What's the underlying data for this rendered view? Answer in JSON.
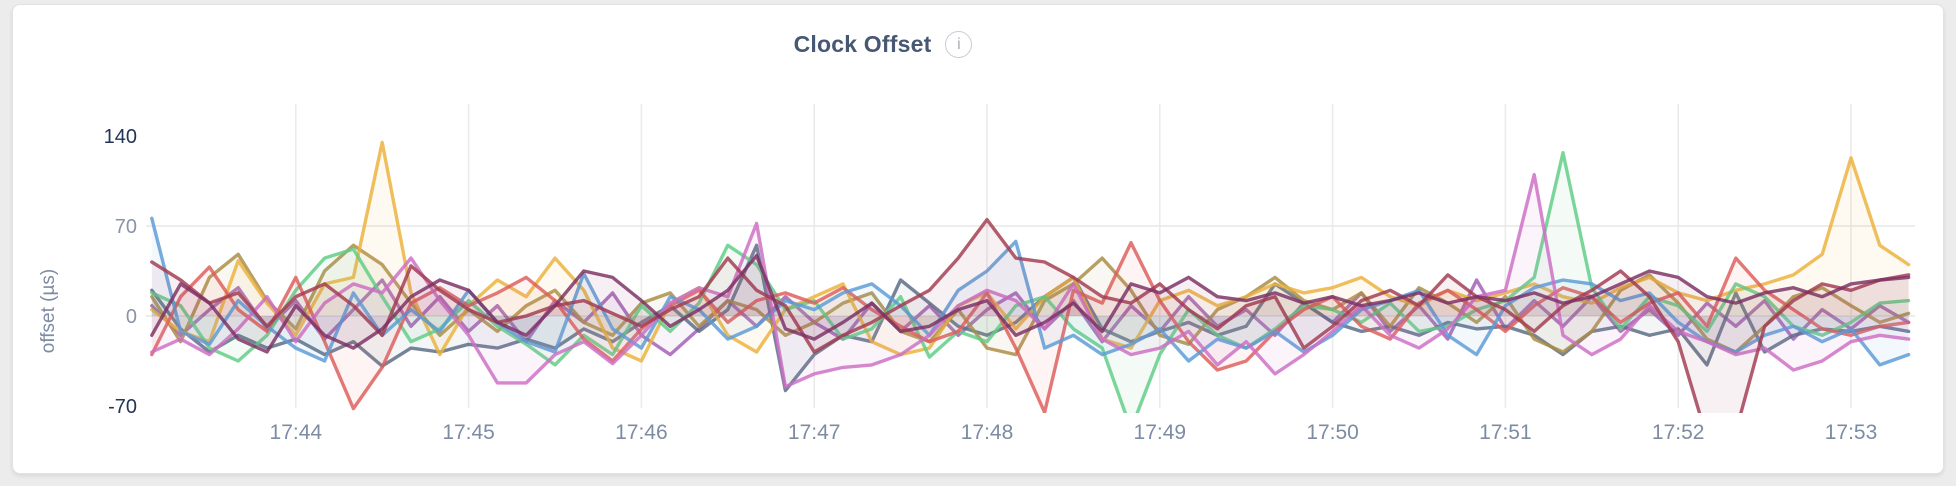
{
  "card": {
    "title": "Clock Offset"
  },
  "icons": {
    "info": "i"
  },
  "chart_data": {
    "type": "line",
    "title": "Clock Offset",
    "xlabel": "",
    "ylabel": "offset (µs)",
    "ylim": [
      -70,
      140
    ],
    "yticks": [
      140,
      70,
      0,
      -70
    ],
    "x_ticks": [
      "17:44",
      "17:45",
      "17:46",
      "17:47",
      "17:48",
      "17:49",
      "17:50",
      "17:51",
      "17:52",
      "17:53"
    ],
    "x_start": "17:43:10",
    "x_step_seconds": 10,
    "grid": true,
    "legend": "none",
    "series": [
      {
        "name": "violet",
        "color": "#A15FB5",
        "values": [
          8,
          -15,
          5,
          22,
          -10,
          12,
          -18,
          5,
          28,
          -8,
          15,
          -12,
          8,
          -20,
          12,
          -5,
          18,
          -15,
          -30,
          -10,
          12,
          -8,
          15,
          -5,
          -18,
          10,
          -12,
          8,
          -15,
          5,
          18,
          -10,
          12,
          -20,
          8,
          -12,
          15,
          -8,
          5,
          -15,
          10,
          -5,
          18,
          -12,
          8,
          -18,
          28,
          -10,
          12,
          -8,
          15,
          -12,
          5,
          -15,
          10,
          -8,
          12,
          -18,
          5,
          -10,
          8,
          -5
        ]
      },
      {
        "name": "slate",
        "color": "#5A6B84",
        "values": [
          20,
          -10,
          -28,
          -15,
          -25,
          -18,
          -30,
          -20,
          -39,
          -25,
          -28,
          -22,
          -25,
          -18,
          -25,
          -10,
          -20,
          -5,
          8,
          -12,
          5,
          55,
          -58,
          -30,
          -15,
          -20,
          28,
          10,
          -8,
          -15,
          -5,
          15,
          30,
          -10,
          -20,
          -12,
          -5,
          -15,
          -8,
          25,
          10,
          -5,
          -12,
          -8,
          -15,
          -5,
          -10,
          -8,
          -15,
          -30,
          -12,
          -8,
          -15,
          -10,
          -38,
          18,
          -28,
          -15,
          -10,
          -12,
          -8,
          -12
        ]
      },
      {
        "name": "olive",
        "color": "#A98D44",
        "values": [
          15,
          -20,
          30,
          48,
          12,
          -10,
          35,
          55,
          40,
          10,
          -15,
          5,
          -12,
          8,
          20,
          -5,
          -15,
          10,
          18,
          -8,
          12,
          5,
          -15,
          -5,
          10,
          18,
          -12,
          -20,
          5,
          -25,
          -30,
          12,
          25,
          45,
          20,
          -15,
          -22,
          5,
          15,
          30,
          12,
          5,
          18,
          -8,
          22,
          10,
          -5,
          15,
          -18,
          -28,
          -12,
          20,
          32,
          10,
          -18,
          -28,
          -8,
          15,
          22,
          8,
          -5,
          2
        ]
      },
      {
        "name": "gold",
        "color": "#ECB23C",
        "values": [
          5,
          -12,
          -20,
          43,
          10,
          -15,
          25,
          30,
          135,
          18,
          -30,
          8,
          28,
          15,
          45,
          20,
          -25,
          -35,
          10,
          22,
          -15,
          -28,
          5,
          15,
          25,
          -20,
          -30,
          -25,
          8,
          18,
          -10,
          15,
          30,
          -18,
          -25,
          12,
          20,
          8,
          15,
          25,
          18,
          22,
          30,
          15,
          8,
          20,
          12,
          18,
          25,
          15,
          10,
          22,
          30,
          18,
          12,
          20,
          25,
          32,
          48,
          123,
          55,
          40
        ]
      },
      {
        "name": "green",
        "color": "#60CC85",
        "values": [
          18,
          8,
          -25,
          -35,
          -15,
          20,
          45,
          52,
          15,
          -20,
          -10,
          12,
          -8,
          -22,
          -38,
          -15,
          -30,
          8,
          -12,
          10,
          55,
          40,
          5,
          12,
          -18,
          -10,
          15,
          -32,
          -12,
          -20,
          8,
          15,
          -10,
          -25,
          -88,
          -30,
          5,
          -15,
          -25,
          -10,
          8,
          5,
          -5,
          10,
          -12,
          -8,
          5,
          12,
          30,
          127,
          22,
          -10,
          15,
          8,
          -12,
          25,
          15,
          -8,
          -15,
          -5,
          10,
          12
        ]
      },
      {
        "name": "salmon",
        "color": "#DD5E5B",
        "values": [
          -30,
          15,
          38,
          5,
          -12,
          30,
          -20,
          -72,
          -40,
          10,
          22,
          8,
          18,
          30,
          12,
          -18,
          -35,
          -10,
          8,
          20,
          -5,
          12,
          18,
          10,
          22,
          5,
          -8,
          -20,
          -12,
          18,
          -25,
          -75,
          20,
          10,
          57,
          12,
          -20,
          -42,
          -35,
          -12,
          5,
          15,
          -8,
          -18,
          10,
          20,
          5,
          -12,
          8,
          22,
          15,
          -5,
          10,
          18,
          -8,
          45,
          20,
          5,
          -10,
          -15,
          -8,
          -5
        ]
      },
      {
        "name": "blue",
        "color": "#5C9BD6",
        "values": [
          76,
          -12,
          -22,
          12,
          -8,
          -25,
          -35,
          18,
          -15,
          5,
          -12,
          20,
          -5,
          -20,
          -28,
          33,
          -10,
          -25,
          15,
          5,
          -18,
          -8,
          12,
          5,
          18,
          25,
          8,
          -15,
          20,
          35,
          58,
          -25,
          -15,
          -30,
          -22,
          -10,
          -35,
          -18,
          -25,
          -12,
          -28,
          -15,
          5,
          12,
          20,
          -15,
          -30,
          8,
          22,
          28,
          25,
          12,
          18,
          -5,
          -20,
          -28,
          -15,
          -8,
          -20,
          -10,
          -38,
          -30
        ]
      },
      {
        "name": "orchid",
        "color": "#CC6FC4",
        "values": [
          -28,
          -18,
          -30,
          -10,
          15,
          -20,
          10,
          25,
          18,
          45,
          12,
          -15,
          -52,
          -52,
          -30,
          -20,
          -37,
          -15,
          10,
          22,
          15,
          72,
          -55,
          -45,
          -40,
          -38,
          -30,
          -15,
          8,
          20,
          12,
          -10,
          25,
          -18,
          -30,
          -25,
          -12,
          -38,
          -20,
          -45,
          -30,
          -12,
          8,
          -15,
          -25,
          -10,
          15,
          20,
          110,
          -15,
          -30,
          -18,
          8,
          -12,
          -20,
          -30,
          -25,
          -42,
          -35,
          -20,
          -15,
          -18
        ]
      },
      {
        "name": "maroon",
        "color": "#A23C52",
        "values": [
          42,
          28,
          10,
          18,
          -8,
          15,
          25,
          8,
          -15,
          39,
          20,
          5,
          -5,
          0,
          8,
          12,
          2,
          -8,
          5,
          15,
          45,
          20,
          8,
          -28,
          -15,
          -5,
          8,
          20,
          45,
          75,
          45,
          42,
          30,
          15,
          10,
          25,
          5,
          -10,
          8,
          15,
          -25,
          -8,
          12,
          20,
          8,
          32,
          15,
          5,
          -12,
          8,
          20,
          35,
          15,
          -20,
          -95,
          -90,
          -8,
          12,
          25,
          20,
          28,
          32
        ]
      },
      {
        "name": "plum",
        "color": "#7C3164",
        "values": [
          -15,
          25,
          10,
          -18,
          -28,
          8,
          -15,
          -25,
          -10,
          15,
          28,
          20,
          -5,
          -15,
          8,
          35,
          30,
          12,
          -8,
          5,
          20,
          47,
          -10,
          -18,
          -5,
          10,
          -12,
          -8,
          5,
          12,
          -15,
          -5,
          10,
          -12,
          25,
          18,
          30,
          15,
          12,
          18,
          10,
          15,
          8,
          12,
          18,
          10,
          15,
          12,
          18,
          10,
          15,
          25,
          35,
          30,
          15,
          10,
          18,
          22,
          15,
          25,
          28,
          30
        ]
      }
    ]
  }
}
